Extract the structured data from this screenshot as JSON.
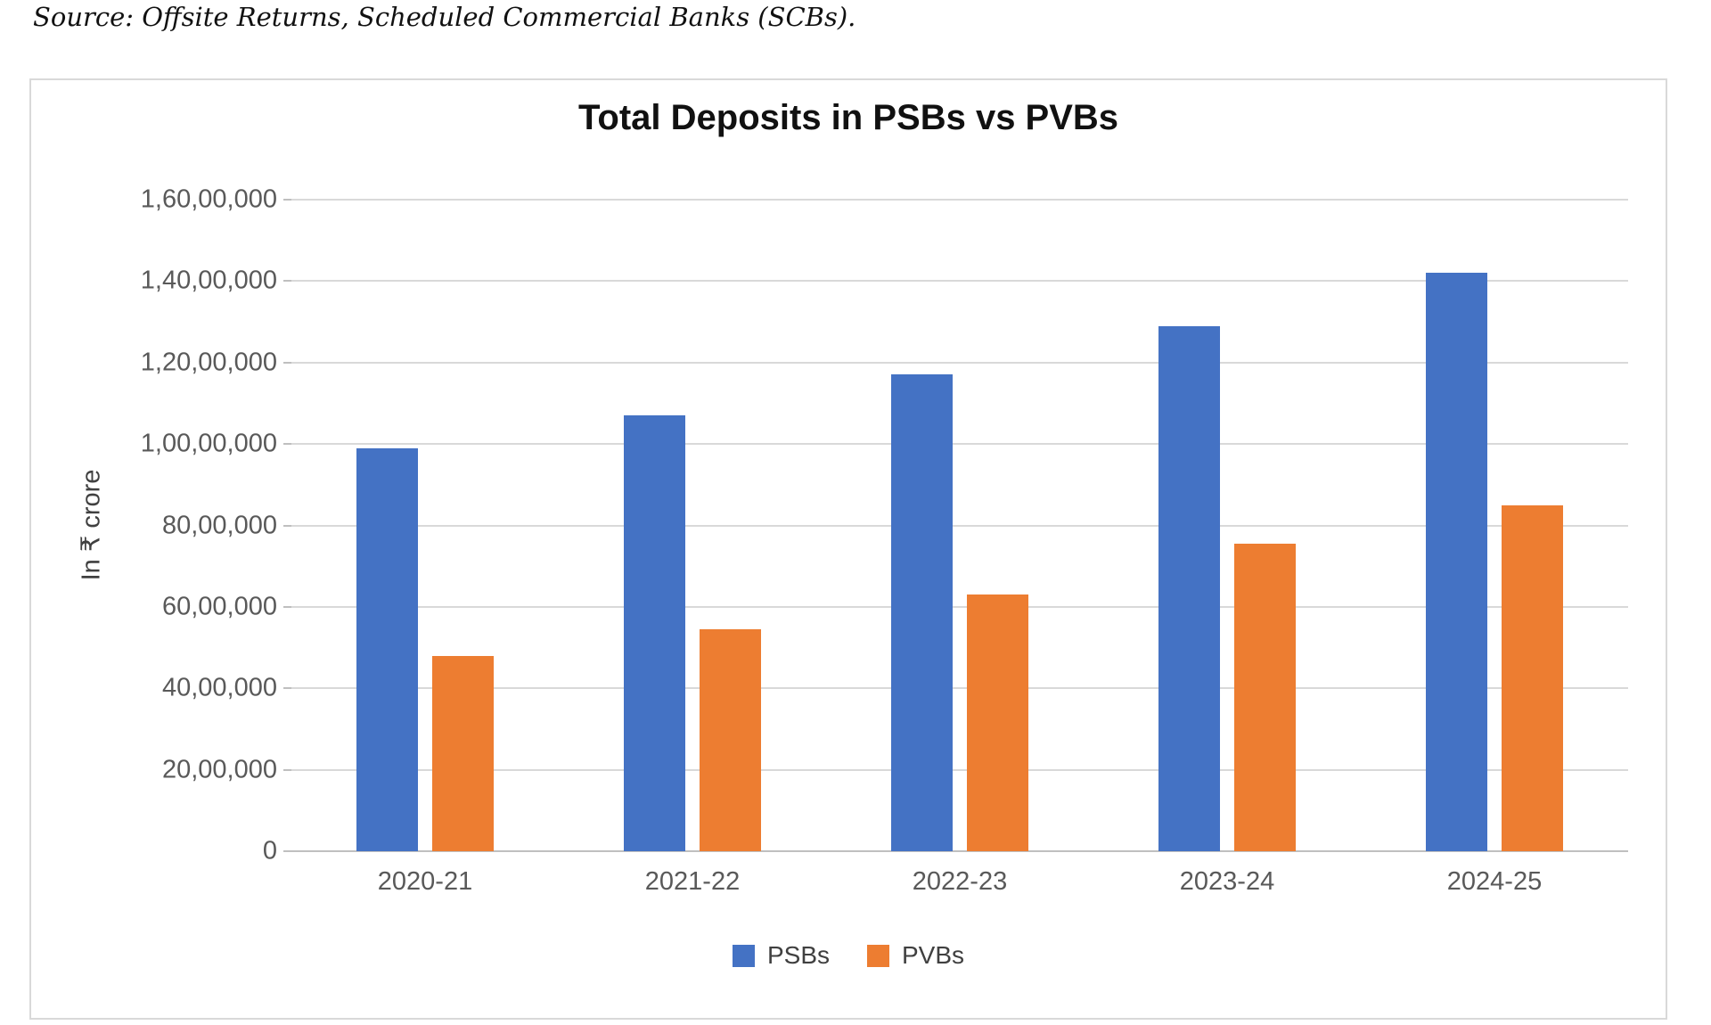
{
  "page": {
    "source_note": "Source: Offsite Returns, Scheduled Commercial Banks (SCBs)."
  },
  "chart_data": {
    "type": "bar",
    "title": "Total Deposits in PSBs vs PVBs",
    "ylabel": "In ₹ crore",
    "xlabel": "",
    "categories": [
      "2020-21",
      "2021-22",
      "2022-23",
      "2023-24",
      "2024-25"
    ],
    "series": [
      {
        "name": "PSBs",
        "color": "#4472C4",
        "values": [
          9900000,
          10700000,
          11700000,
          12900000,
          14200000
        ]
      },
      {
        "name": "PVBs",
        "color": "#ED7D31",
        "values": [
          4800000,
          5450000,
          6300000,
          7550000,
          8500000
        ]
      }
    ],
    "ylim": [
      0,
      16000000
    ],
    "ytick_step": 2000000,
    "ytick_labels": [
      "0",
      "20,00,000",
      "40,00,000",
      "60,00,000",
      "80,00,000",
      "1,00,00,000",
      "1,20,00,000",
      "1,40,00,000",
      "1,60,00,000"
    ],
    "grid": true,
    "legend_position": "bottom"
  },
  "colors": {
    "gridline": "#D9D9D9",
    "axis_line": "#BFBFBF",
    "tick_label": "#595959",
    "title_text": "#111111",
    "chart_border": "#D9D9D9"
  }
}
